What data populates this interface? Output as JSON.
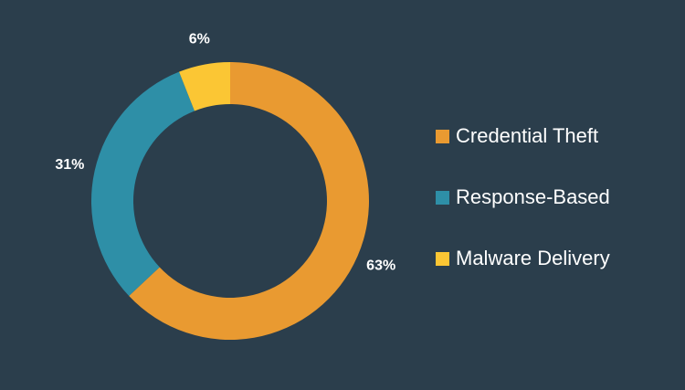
{
  "chart_data": {
    "type": "donut",
    "categories": [
      "Credential Theft",
      "Response-Based",
      "Malware Delivery"
    ],
    "values": [
      63,
      31,
      6
    ],
    "value_labels": [
      "63%",
      "31%",
      "6%"
    ],
    "colors": [
      "#e99a31",
      "#2e8fa7",
      "#fbc634"
    ],
    "legend": "right"
  }
}
